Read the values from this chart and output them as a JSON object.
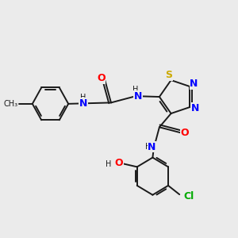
{
  "background_color": "#ebebeb",
  "figsize": [
    3.0,
    3.0
  ],
  "dpi": 100,
  "bond_lw": 1.4,
  "font_size": 8,
  "ring_colors": {
    "S": "#ccaa00",
    "N": "#0000ff",
    "O": "#ff0000",
    "Cl": "#00aa00",
    "C": "#1a1a1a",
    "H": "#1a1a1a",
    "NH": "#0000ff"
  }
}
